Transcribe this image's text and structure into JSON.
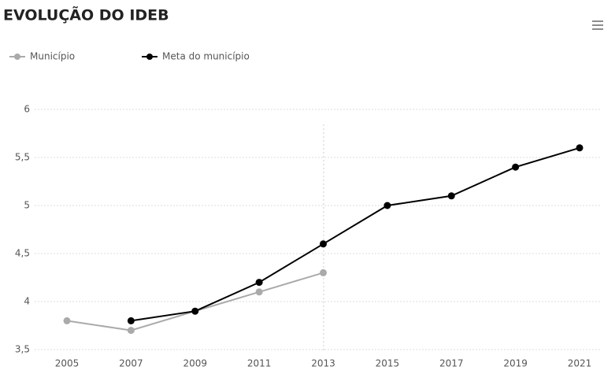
{
  "chart_data": {
    "type": "line",
    "title": "EVOLUÇÃO DO IDEB",
    "categories": [
      "2005",
      "2007",
      "2009",
      "2011",
      "2013",
      "2015",
      "2017",
      "2019",
      "2021"
    ],
    "series": [
      {
        "name": "Município",
        "color": "#aaaaaa",
        "values": [
          3.8,
          3.7,
          3.9,
          4.1,
          4.3,
          null,
          null,
          null,
          null
        ]
      },
      {
        "name": "Meta do município",
        "color": "#000000",
        "values": [
          null,
          3.8,
          3.9,
          4.2,
          4.6,
          5.0,
          5.1,
          5.4,
          5.6
        ]
      }
    ],
    "ylim": [
      3.5,
      6
    ],
    "yticks": [
      {
        "value": 3.5,
        "label": "3,5"
      },
      4,
      {
        "value": 4.5,
        "label": "4,5"
      },
      5,
      {
        "value": 5.5,
        "label": "5,5"
      },
      6
    ],
    "grid": true
  }
}
